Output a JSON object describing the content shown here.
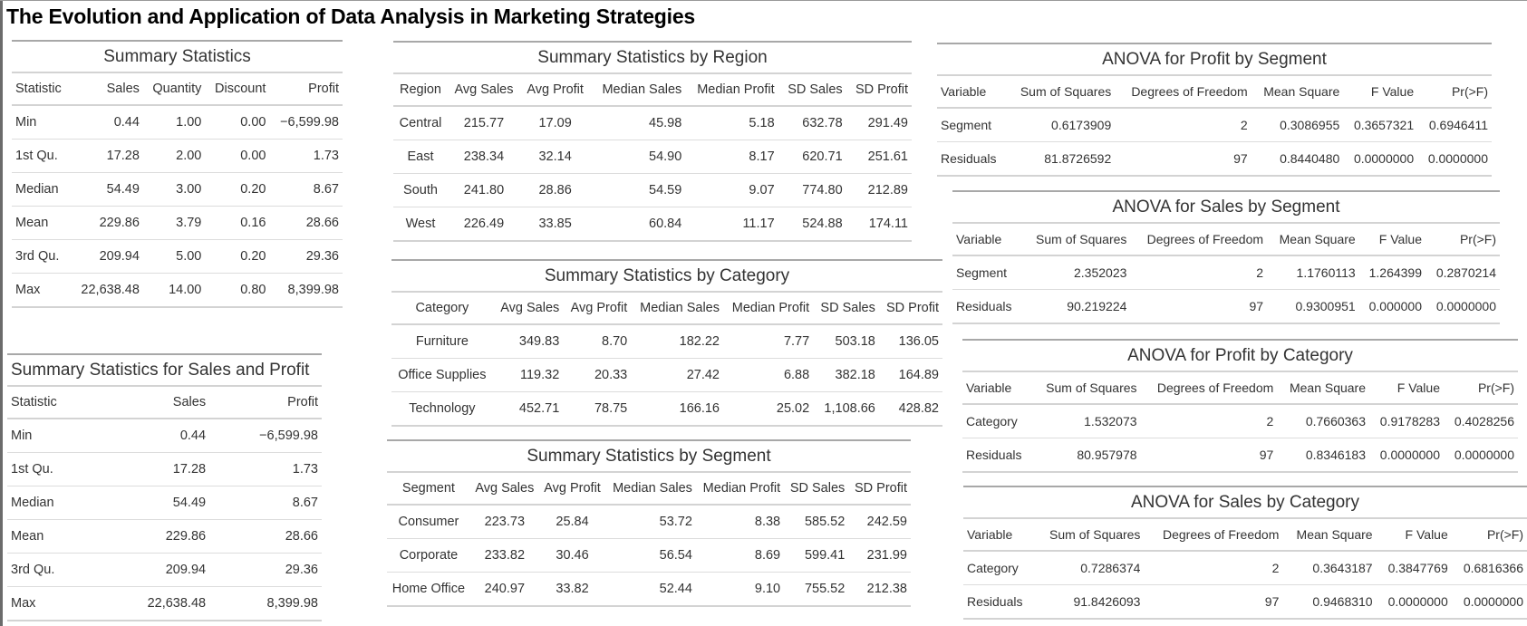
{
  "page": {
    "title": "The Evolution and Application of Data Analysis in Marketing Strategies"
  },
  "summary_stats": {
    "caption": "Summary Statistics",
    "headers": [
      "Statistic",
      "Sales",
      "Quantity",
      "Discount",
      "Profit"
    ],
    "rows": [
      [
        "Min",
        "0.44",
        "1.00",
        "0.00",
        "−6,599.98"
      ],
      [
        "1st Qu.",
        "17.28",
        "2.00",
        "0.00",
        "1.73"
      ],
      [
        "Median",
        "54.49",
        "3.00",
        "0.20",
        "8.67"
      ],
      [
        "Mean",
        "229.86",
        "3.79",
        "0.16",
        "28.66"
      ],
      [
        "3rd Qu.",
        "209.94",
        "5.00",
        "0.20",
        "29.36"
      ],
      [
        "Max",
        "22,638.48",
        "14.00",
        "0.80",
        "8,399.98"
      ]
    ]
  },
  "summary_sales_profit": {
    "caption": "Summary Statistics for Sales and Profit",
    "headers": [
      "Statistic",
      "Sales",
      "Profit"
    ],
    "rows": [
      [
        "Min",
        "0.44",
        "−6,599.98"
      ],
      [
        "1st Qu.",
        "17.28",
        "1.73"
      ],
      [
        "Median",
        "54.49",
        "8.67"
      ],
      [
        "Mean",
        "229.86",
        "28.66"
      ],
      [
        "3rd Qu.",
        "209.94",
        "29.36"
      ],
      [
        "Max",
        "22,638.48",
        "8,399.98"
      ]
    ]
  },
  "by_region": {
    "caption": "Summary Statistics by Region",
    "headers": [
      "Region",
      "Avg Sales",
      "Avg Profit",
      "Median Sales",
      "Median Profit",
      "SD Sales",
      "SD Profit"
    ],
    "rows": [
      [
        "Central",
        "215.77",
        "17.09",
        "45.98",
        "5.18",
        "632.78",
        "291.49"
      ],
      [
        "East",
        "238.34",
        "32.14",
        "54.90",
        "8.17",
        "620.71",
        "251.61"
      ],
      [
        "South",
        "241.80",
        "28.86",
        "54.59",
        "9.07",
        "774.80",
        "212.89"
      ],
      [
        "West",
        "226.49",
        "33.85",
        "60.84",
        "11.17",
        "524.88",
        "174.11"
      ]
    ]
  },
  "by_category": {
    "caption": "Summary Statistics by Category",
    "headers": [
      "Category",
      "Avg Sales",
      "Avg Profit",
      "Median Sales",
      "Median Profit",
      "SD Sales",
      "SD Profit"
    ],
    "rows": [
      [
        "Furniture",
        "349.83",
        "8.70",
        "182.22",
        "7.77",
        "503.18",
        "136.05"
      ],
      [
        "Office Supplies",
        "119.32",
        "20.33",
        "27.42",
        "6.88",
        "382.18",
        "164.89"
      ],
      [
        "Technology",
        "452.71",
        "78.75",
        "166.16",
        "25.02",
        "1,108.66",
        "428.82"
      ]
    ]
  },
  "by_segment": {
    "caption": "Summary Statistics by Segment",
    "headers": [
      "Segment",
      "Avg Sales",
      "Avg Profit",
      "Median Sales",
      "Median Profit",
      "SD Sales",
      "SD Profit"
    ],
    "rows": [
      [
        "Consumer",
        "223.73",
        "25.84",
        "53.72",
        "8.38",
        "585.52",
        "242.59"
      ],
      [
        "Corporate",
        "233.82",
        "30.46",
        "56.54",
        "8.69",
        "599.41",
        "231.99"
      ],
      [
        "Home Office",
        "240.97",
        "33.82",
        "52.44",
        "9.10",
        "755.52",
        "212.38"
      ]
    ]
  },
  "anova_profit_segment": {
    "caption": "ANOVA for Profit by Segment",
    "headers": [
      "Variable",
      "Sum of Squares",
      "Degrees of Freedom",
      "Mean Square",
      "F Value",
      "Pr(>F)"
    ],
    "rows": [
      [
        "Segment",
        "0.6173909",
        "2",
        "0.3086955",
        "0.3657321",
        "0.6946411"
      ],
      [
        "Residuals",
        "81.8726592",
        "97",
        "0.8440480",
        "0.0000000",
        "0.0000000"
      ]
    ]
  },
  "anova_sales_segment": {
    "caption": "ANOVA for Sales by Segment",
    "headers": [
      "Variable",
      "Sum of Squares",
      "Degrees of Freedom",
      "Mean Square",
      "F Value",
      "Pr(>F)"
    ],
    "rows": [
      [
        "Segment",
        "2.352023",
        "2",
        "1.1760113",
        "1.264399",
        "0.2870214"
      ],
      [
        "Residuals",
        "90.219224",
        "97",
        "0.9300951",
        "0.000000",
        "0.0000000"
      ]
    ]
  },
  "anova_profit_category": {
    "caption": "ANOVA for Profit by Category",
    "headers": [
      "Variable",
      "Sum of Squares",
      "Degrees of Freedom",
      "Mean Square",
      "F Value",
      "Pr(>F)"
    ],
    "rows": [
      [
        "Category",
        "1.532073",
        "2",
        "0.7660363",
        "0.9178283",
        "0.4028256"
      ],
      [
        "Residuals",
        "80.957978",
        "97",
        "0.8346183",
        "0.0000000",
        "0.0000000"
      ]
    ]
  },
  "anova_sales_category": {
    "caption": "ANOVA for Sales by Category",
    "headers": [
      "Variable",
      "Sum of Squares",
      "Degrees of Freedom",
      "Mean Square",
      "F Value",
      "Pr(>F)"
    ],
    "rows": [
      [
        "Category",
        "0.7286374",
        "2",
        "0.3643187",
        "0.3847769",
        "0.6816366"
      ],
      [
        "Residuals",
        "91.8426093",
        "97",
        "0.9468310",
        "0.0000000",
        "0.0000000"
      ]
    ]
  }
}
